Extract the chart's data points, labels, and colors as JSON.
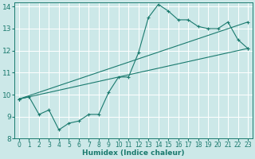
{
  "xlabel": "Humidex (Indice chaleur)",
  "bg_color": "#cce8e8",
  "line_color": "#1a7a6e",
  "grid_color": "#ffffff",
  "xlim": [
    -0.5,
    23.5
  ],
  "ylim": [
    8,
    14.2
  ],
  "xticks": [
    0,
    1,
    2,
    3,
    4,
    5,
    6,
    7,
    8,
    9,
    10,
    11,
    12,
    13,
    14,
    15,
    16,
    17,
    18,
    19,
    20,
    21,
    22,
    23
  ],
  "yticks": [
    8,
    9,
    10,
    11,
    12,
    13,
    14
  ],
  "series1_x": [
    0,
    1,
    2,
    3,
    4,
    5,
    6,
    7,
    8,
    9,
    10,
    11,
    12,
    13,
    14,
    15,
    16,
    17,
    18,
    19,
    20,
    21,
    22,
    23
  ],
  "series1_y": [
    9.8,
    9.9,
    9.1,
    9.3,
    8.4,
    8.7,
    8.8,
    9.1,
    9.1,
    10.1,
    10.8,
    10.8,
    11.9,
    13.5,
    14.1,
    13.8,
    13.4,
    13.4,
    13.1,
    13.0,
    13.0,
    13.3,
    12.5,
    12.1
  ],
  "series2_x": [
    0,
    23
  ],
  "series2_y": [
    9.8,
    13.3
  ],
  "series3_x": [
    0,
    23
  ],
  "series3_y": [
    9.8,
    12.1
  ]
}
